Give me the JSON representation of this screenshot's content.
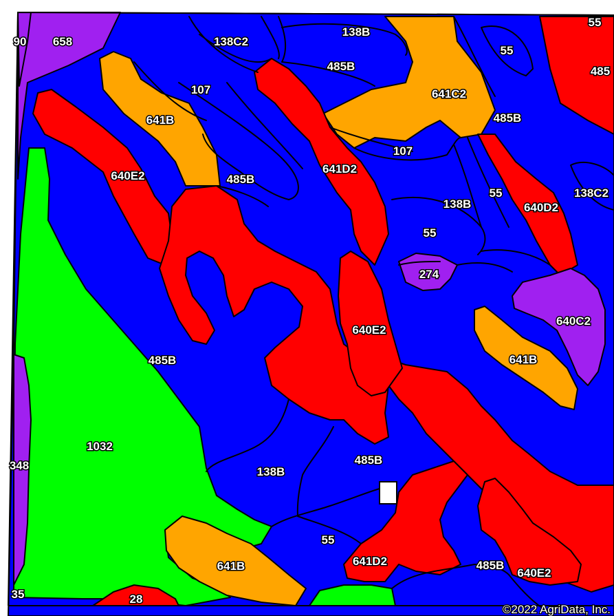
{
  "map": {
    "colors": {
      "blue": "#0000FF",
      "red": "#FF0000",
      "orange": "#FFA500",
      "purple": "#A020F0",
      "green": "#00FF00",
      "white": "#FFFFFF"
    },
    "labels": {
      "l_90": "90",
      "l_658": "658",
      "l_138C2_top": "138C2",
      "l_138B_top": "138B",
      "l_55_top": "55",
      "l_55_corner": "55",
      "l_485_edge": "485",
      "l_485B_top": "485B",
      "l_107_a": "107",
      "l_641C2": "641C2",
      "l_641B_a": "641B",
      "l_485B_b": "485B",
      "l_640E2_a": "640E2",
      "l_485B_c": "485B",
      "l_107_b": "107",
      "l_641D2_a": "641D2",
      "l_55_b": "55",
      "l_640D2": "640D2",
      "l_138C2_right": "138C2",
      "l_138B_mid": "138B",
      "l_55_c": "55",
      "l_274": "274",
      "l_640C2": "640C2",
      "l_640E2_b": "640E2",
      "l_641B_b": "641B",
      "l_485B_d": "485B",
      "l_1032": "1032",
      "l_348": "348",
      "l_138B_low": "138B",
      "l_485B_e": "485B",
      "l_55_d": "55",
      "l_641B_c": "641B",
      "l_641D2_b": "641D2",
      "l_485B_f": "485B",
      "l_640E2_c": "640E2",
      "l_35": "35",
      "l_28": "28"
    },
    "copyright": "©2022 AgriData, Inc."
  }
}
